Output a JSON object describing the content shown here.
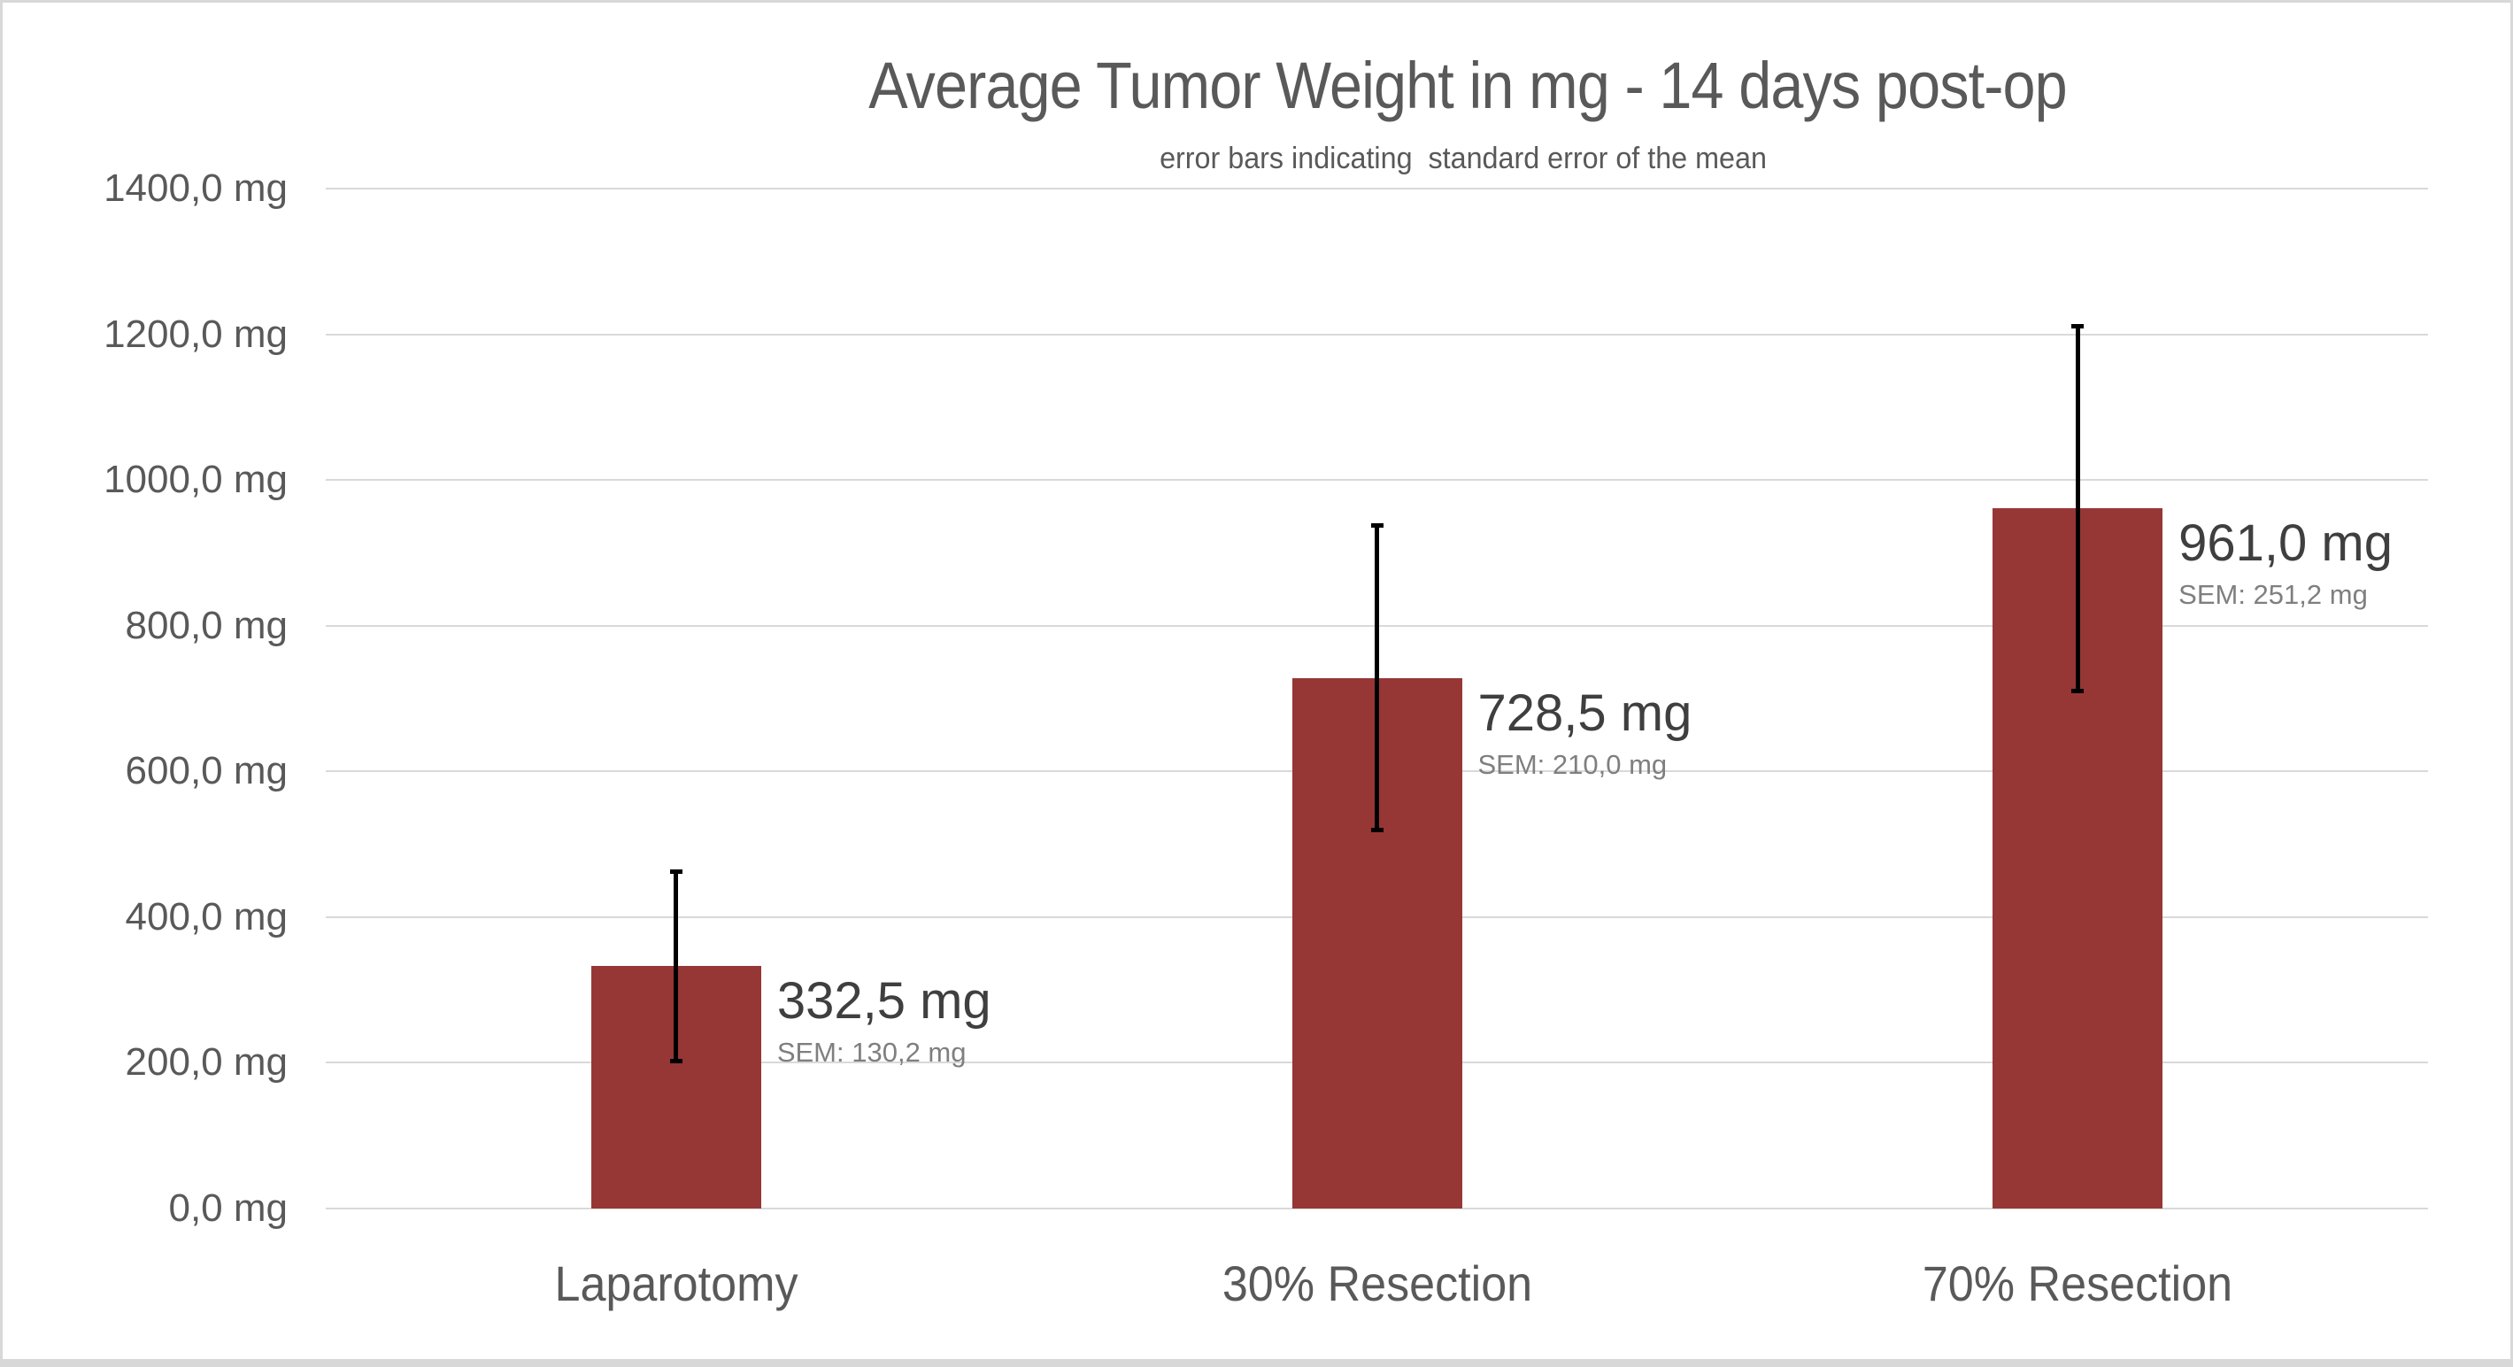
{
  "header": {
    "title": "Average Tumor Weight in mg - 14 days post-op",
    "subtitle": "error bars indicating  standard error of the mean"
  },
  "chart_data": {
    "type": "bar",
    "title": "Average Tumor Weight in mg - 14 days post-op",
    "subtitle": "error bars indicating  standard error of the mean",
    "categories": [
      "Laparotomy",
      "30% Resection",
      "70% Resection"
    ],
    "series": [
      {
        "name": "Average tumor weight",
        "values": [
          332.5,
          728.5,
          961.0
        ],
        "sem": [
          130.2,
          210.0,
          251.2
        ]
      }
    ],
    "value_labels": [
      "332,5 mg",
      "728,5 mg",
      "961,0 mg"
    ],
    "sem_labels": [
      "SEM: 130,2 mg",
      "SEM: 210,0 mg",
      "SEM: 251,2 mg"
    ],
    "ylabel": "",
    "xlabel": "",
    "ylim": [
      0,
      1400
    ],
    "ytick_values": [
      0,
      200,
      400,
      600,
      800,
      1000,
      1200,
      1400
    ],
    "ytick_labels": [
      "0,0 mg",
      "200,0 mg",
      "400,0 mg",
      "600,0 mg",
      "800,0 mg",
      "1000,0 mg",
      "1200,0 mg",
      "1400,0 mg"
    ],
    "grid": true,
    "legend": false,
    "error_bars": "standard error of the mean"
  },
  "colors": {
    "bar": "#963735",
    "error_bar": "#000000",
    "gridline": "#d9d9d9",
    "frame_border": "#d8d8d8",
    "title_text": "#595959",
    "axis_text": "#595959",
    "value_text": "#3f3f3f",
    "sem_text": "#7f7f7f",
    "background": "#ffffff"
  }
}
